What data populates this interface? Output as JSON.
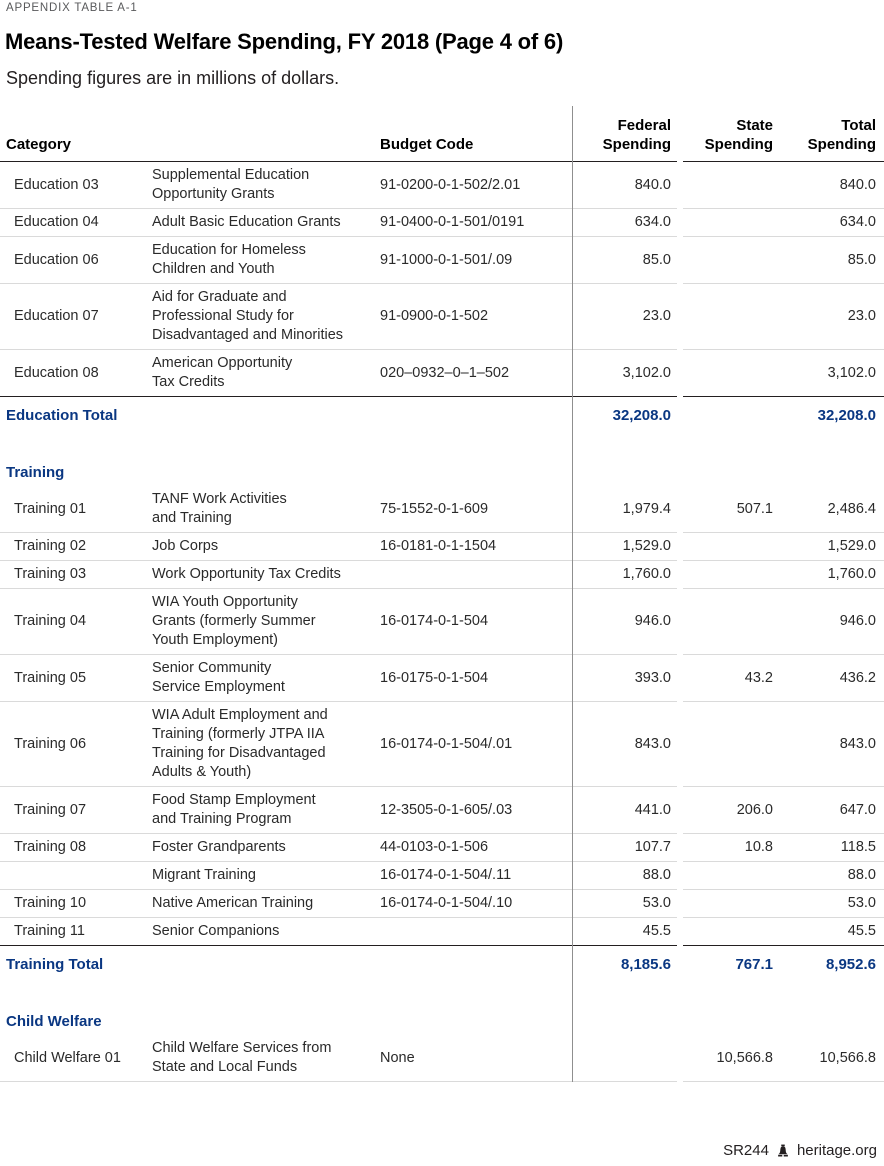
{
  "page": {
    "kicker": "APPENDIX TABLE A-1",
    "title": "Means-Tested Welfare Spending, FY 2018 (Page 4 of 6)",
    "subtitle": "Spending figures are in millions of dollars.",
    "footer": {
      "report_id": "SR244",
      "site": "heritage.org"
    }
  },
  "colors": {
    "accent_navy": "#0a3782",
    "body_text": "#2a2a2a",
    "dark_rule": "#231f20",
    "light_rule": "#dadada",
    "vertical_rule": "#8f8f8f",
    "kicker_gray": "#58595b"
  },
  "table": {
    "headers": {
      "category": "Category",
      "budget_code": "Budget Code",
      "federal": "Federal\nSpending",
      "state": "State\nSpending",
      "total": "Total\nSpending"
    },
    "sections": [
      {
        "label": "",
        "rows": [
          {
            "category": "Education 03",
            "program": "Supplemental Education\nOpportunity Grants",
            "budget_code": "91-0200-0-1-502/2.01",
            "federal": "840.0",
            "state": "",
            "total": "840.0"
          },
          {
            "category": "Education 04",
            "program": "Adult Basic Education Grants",
            "budget_code": "91-0400-0-1-501/0191",
            "federal": "634.0",
            "state": "",
            "total": "634.0"
          },
          {
            "category": "Education 06",
            "program": "Education for Homeless\nChildren and Youth",
            "budget_code": "91-1000-0-1-501/.09",
            "federal": "85.0",
            "state": "",
            "total": "85.0"
          },
          {
            "category": "Education 07",
            "program": "Aid for Graduate and\nProfessional Study for\nDisadvantaged and Minorities",
            "budget_code": "91-0900-0-1-502",
            "federal": "23.0",
            "state": "",
            "total": "23.0"
          },
          {
            "category": "Education 08",
            "program": "American Opportunity\nTax Credits",
            "budget_code": "020–0932–0–1–502",
            "federal": "3,102.0",
            "state": "",
            "total": "3,102.0"
          }
        ],
        "total": {
          "label": "Education Total",
          "federal": "32,208.0",
          "state": "",
          "total": "32,208.0"
        }
      },
      {
        "label": "Training",
        "rows": [
          {
            "category": "Training 01",
            "program": "TANF Work Activities\nand Training",
            "budget_code": "75-1552-0-1-609",
            "federal": "1,979.4",
            "state": "507.1",
            "total": "2,486.4"
          },
          {
            "category": "Training 02",
            "program": "Job Corps",
            "budget_code": "16-0181-0-1-1504",
            "federal": "1,529.0",
            "state": "",
            "total": "1,529.0"
          },
          {
            "category": "Training 03",
            "program": "Work Opportunity Tax Credits",
            "budget_code": "",
            "federal": "1,760.0",
            "state": "",
            "total": "1,760.0"
          },
          {
            "category": "Training 04",
            "program": "WIA Youth Opportunity\nGrants (formerly Summer\nYouth Employment)",
            "budget_code": "16-0174-0-1-504",
            "federal": "946.0",
            "state": "",
            "total": "946.0"
          },
          {
            "category": "Training 05",
            "program": "Senior Community\nService Employment",
            "budget_code": "16-0175-0-1-504",
            "federal": "393.0",
            "state": "43.2",
            "total": "436.2"
          },
          {
            "category": "Training 06",
            "program": "WIA Adult Employment and\nTraining (formerly JTPA IIA\nTraining for Disadvantaged\nAdults & Youth)",
            "budget_code": "16-0174-0-1-504/.01",
            "federal": "843.0",
            "state": "",
            "total": "843.0"
          },
          {
            "category": "Training 07",
            "program": "Food Stamp Employment\nand Training Program",
            "budget_code": "12-3505-0-1-605/.03",
            "federal": "441.0",
            "state": "206.0",
            "total": "647.0"
          },
          {
            "category": "Training 08",
            "program": "Foster Grandparents",
            "budget_code": "44-0103-0-1-506",
            "federal": "107.7",
            "state": "10.8",
            "total": "118.5"
          },
          {
            "category": "",
            "program": "Migrant Training",
            "budget_code": "16-0174-0-1-504/.11",
            "federal": "88.0",
            "state": "",
            "total": "88.0"
          },
          {
            "category": "Training 10",
            "program": "Native American Training",
            "budget_code": "16-0174-0-1-504/.10",
            "federal": "53.0",
            "state": "",
            "total": "53.0"
          },
          {
            "category": "Training 11",
            "program": "Senior Companions",
            "budget_code": "",
            "federal": "45.5",
            "state": "",
            "total": "45.5"
          }
        ],
        "total": {
          "label": "Training Total",
          "federal": "8,185.6",
          "state": "767.1",
          "total": "8,952.6"
        }
      },
      {
        "label": "Child Welfare",
        "rows": [
          {
            "category": "Child Welfare 01",
            "program": "Child Welfare Services from\nState and Local Funds",
            "budget_code": "None",
            "federal": "",
            "state": "10,566.8",
            "total": "10,566.8"
          }
        ],
        "total": null
      }
    ]
  }
}
